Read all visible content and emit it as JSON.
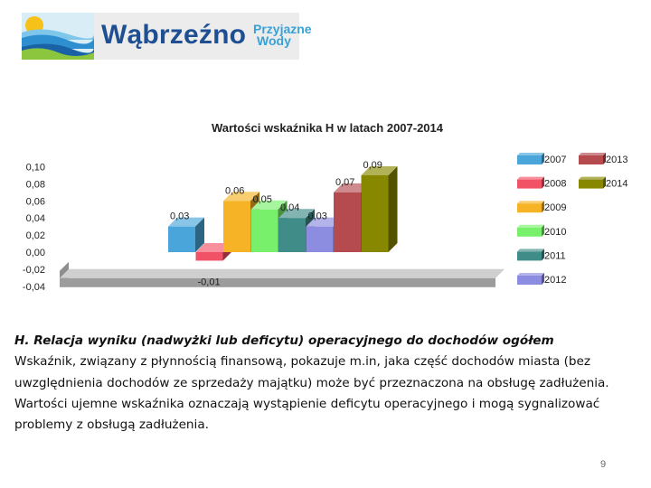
{
  "logo": {
    "name": "Wąbrzeźno",
    "tagline_line1": "Przyjazne",
    "tagline_line2": "Wody"
  },
  "colors": {
    "2007": "#4aa6da",
    "2008": "#f25266",
    "2009": "#f5b325",
    "2010": "#79f06c",
    "2011": "#3f8c88",
    "2012": "#8c8ce0",
    "2013": "#b54b4f",
    "2014": "#888800"
  },
  "chart_data": {
    "type": "bar",
    "title": "Wartości wskaźnika H w latach 2007-2014",
    "categories": [
      "2007",
      "2008",
      "2009",
      "2010",
      "2011",
      "2012",
      "2013",
      "2014"
    ],
    "values": [
      0.03,
      -0.01,
      0.06,
      0.05,
      0.04,
      0.03,
      0.07,
      0.09
    ],
    "value_labels": [
      "0,03",
      "-0,01",
      "0,06",
      "0,05",
      "0,04",
      "0,03",
      "0,07",
      "0,09"
    ],
    "y_ticks": [
      "0,10",
      "0,08",
      "0,06",
      "0,04",
      "0,02",
      "0,00",
      "-0,02",
      "-0,04"
    ],
    "ylim": [
      -0.04,
      0.1
    ],
    "grid": false,
    "legend_position": "right"
  },
  "text": {
    "heading": "H. Relacja wyniku (nadwyżki lub deficytu) operacyjnego do dochodów ogółem",
    "body": "Wskaźnik, związany z płynnością finansową, pokazuje m.in, jaka część dochodów miasta (bez uwzględnienia dochodów ze sprzedaży majątku) może być przeznaczona na obsługę zadłużenia. Wartości ujemne wskaźnika oznaczają wystąpienie deficytu operacyjnego i mogą sygnalizować problemy z obsługą zadłużenia."
  },
  "page_number": "9"
}
